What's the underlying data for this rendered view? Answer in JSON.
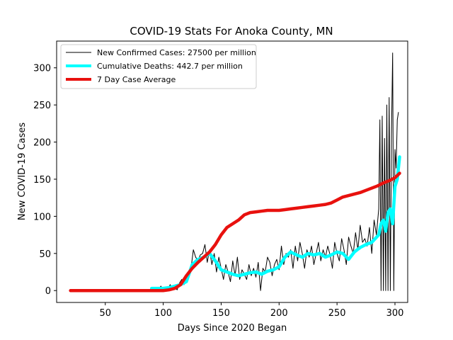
{
  "chart_data": {
    "type": "line",
    "title": "COVID-19 Stats For Anoka County, MN",
    "xlabel": "Days Since 2020 Began",
    "ylabel": "New COVID-19 Cases",
    "xlim": [
      8,
      311
    ],
    "ylim": [
      -16,
      336
    ],
    "xticks": [
      50,
      100,
      150,
      200,
      250,
      300
    ],
    "yticks": [
      0,
      50,
      100,
      150,
      200,
      250,
      300
    ],
    "grid": false,
    "legend_position": "top-left",
    "series": [
      {
        "name": "New Confirmed Cases: 27500 per million",
        "color": "#000000",
        "x": [
          90,
          92,
          94,
          96,
          98,
          100,
          102,
          104,
          106,
          108,
          110,
          112,
          114,
          116,
          118,
          120,
          122,
          124,
          126,
          128,
          130,
          132,
          134,
          136,
          138,
          140,
          142,
          144,
          146,
          148,
          150,
          152,
          154,
          156,
          158,
          160,
          162,
          164,
          166,
          168,
          170,
          172,
          174,
          176,
          178,
          180,
          182,
          184,
          186,
          188,
          190,
          192,
          194,
          196,
          198,
          200,
          202,
          204,
          206,
          208,
          210,
          212,
          214,
          216,
          218,
          220,
          222,
          224,
          226,
          228,
          230,
          232,
          234,
          236,
          238,
          240,
          242,
          244,
          246,
          248,
          250,
          252,
          254,
          256,
          258,
          260,
          262,
          264,
          266,
          268,
          270,
          272,
          274,
          276,
          278,
          280,
          282,
          284,
          286,
          287,
          288,
          289,
          290,
          291,
          292,
          293,
          294,
          295,
          296,
          297,
          298,
          299,
          300,
          301,
          302,
          303
        ],
        "values": [
          2,
          0,
          3,
          1,
          6,
          0,
          4,
          2,
          8,
          3,
          5,
          1,
          10,
          15,
          8,
          20,
          25,
          30,
          55,
          45,
          40,
          48,
          50,
          62,
          38,
          55,
          35,
          50,
          25,
          45,
          30,
          15,
          35,
          25,
          12,
          40,
          20,
          45,
          15,
          28,
          22,
          15,
          35,
          20,
          30,
          18,
          38,
          0,
          30,
          25,
          45,
          38,
          20,
          35,
          42,
          28,
          60,
          35,
          50,
          45,
          55,
          30,
          60,
          40,
          65,
          50,
          30,
          55,
          45,
          60,
          35,
          50,
          65,
          40,
          55,
          45,
          60,
          48,
          30,
          65,
          50,
          40,
          70,
          55,
          35,
          72,
          60,
          50,
          78,
          55,
          88,
          65,
          70,
          60,
          85,
          50,
          95,
          75,
          110,
          230,
          0,
          235,
          0,
          205,
          0,
          250,
          0,
          260,
          0,
          210,
          320,
          0,
          190,
          165,
          230,
          240
        ]
      },
      {
        "name": "Cumulative Deaths: 442.7 per million",
        "color": "#00ffff",
        "x": [
          90,
          95,
          100,
          105,
          110,
          115,
          120,
          125,
          130,
          135,
          140,
          145,
          150,
          155,
          160,
          165,
          170,
          175,
          180,
          185,
          190,
          195,
          200,
          205,
          210,
          215,
          220,
          225,
          230,
          235,
          240,
          245,
          250,
          255,
          260,
          265,
          270,
          275,
          280,
          283,
          286,
          288,
          290,
          292,
          294,
          296,
          298,
          300,
          302,
          304
        ],
        "values": [
          3,
          3,
          3,
          4,
          6,
          8,
          12,
          35,
          42,
          45,
          50,
          40,
          28,
          25,
          22,
          20,
          22,
          24,
          25,
          22,
          26,
          28,
          32,
          45,
          52,
          48,
          45,
          50,
          48,
          50,
          45,
          48,
          52,
          50,
          42,
          52,
          58,
          62,
          65,
          70,
          75,
          90,
          95,
          80,
          105,
          110,
          90,
          140,
          150,
          180
        ]
      },
      {
        "name": "7 Day Case Average",
        "color": "#e8110e",
        "x": [
          20,
          40,
          60,
          80,
          100,
          105,
          110,
          115,
          120,
          125,
          130,
          135,
          140,
          145,
          150,
          155,
          160,
          165,
          170,
          175,
          180,
          185,
          190,
          195,
          200,
          205,
          210,
          215,
          220,
          225,
          230,
          235,
          240,
          245,
          250,
          255,
          260,
          265,
          270,
          275,
          280,
          285,
          290,
          295,
          300,
          304
        ],
        "values": [
          0,
          0,
          0,
          0,
          0,
          1,
          3,
          8,
          20,
          30,
          38,
          45,
          52,
          62,
          75,
          85,
          90,
          95,
          102,
          105,
          106,
          107,
          108,
          108,
          108,
          109,
          110,
          111,
          112,
          113,
          114,
          115,
          116,
          118,
          122,
          126,
          128,
          130,
          132,
          135,
          138,
          141,
          145,
          148,
          152,
          158
        ]
      }
    ]
  }
}
